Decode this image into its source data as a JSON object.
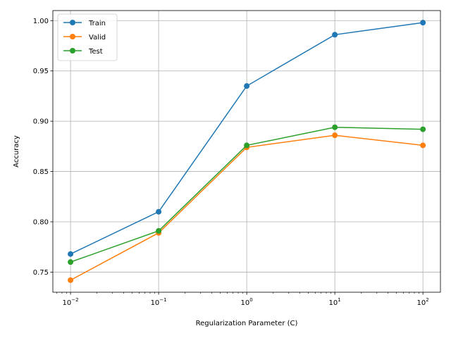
{
  "chart_data": {
    "type": "line",
    "title": "",
    "xlabel": "Regularization Parameter (C)",
    "ylabel": "Accuracy",
    "xscale": "log",
    "x": [
      0.01,
      0.1,
      1,
      10,
      100
    ],
    "xticks": [
      0.01,
      0.1,
      1,
      10,
      100
    ],
    "xtick_labels": [
      {
        "base": "10",
        "exp": "−2"
      },
      {
        "base": "10",
        "exp": "−1"
      },
      {
        "base": "10",
        "exp": "0"
      },
      {
        "base": "10",
        "exp": "1"
      },
      {
        "base": "10",
        "exp": "2"
      }
    ],
    "yticks": [
      0.75,
      0.8,
      0.85,
      0.9,
      0.95,
      1.0
    ],
    "ytick_labels": [
      "0.75",
      "0.80",
      "0.85",
      "0.90",
      "0.95",
      "1.00"
    ],
    "xlim": [
      0.0063,
      158
    ],
    "ylim": [
      0.73,
      1.01
    ],
    "grid": true,
    "legend_position": "top-left",
    "series": [
      {
        "name": "Train",
        "color": "#1f77b4",
        "values": [
          0.768,
          0.81,
          0.935,
          0.986,
          0.998
        ]
      },
      {
        "name": "Valid",
        "color": "#ff7f0e",
        "values": [
          0.742,
          0.789,
          0.874,
          0.886,
          0.876
        ]
      },
      {
        "name": "Test",
        "color": "#2ca02c",
        "values": [
          0.76,
          0.791,
          0.876,
          0.894,
          0.892
        ]
      }
    ]
  }
}
